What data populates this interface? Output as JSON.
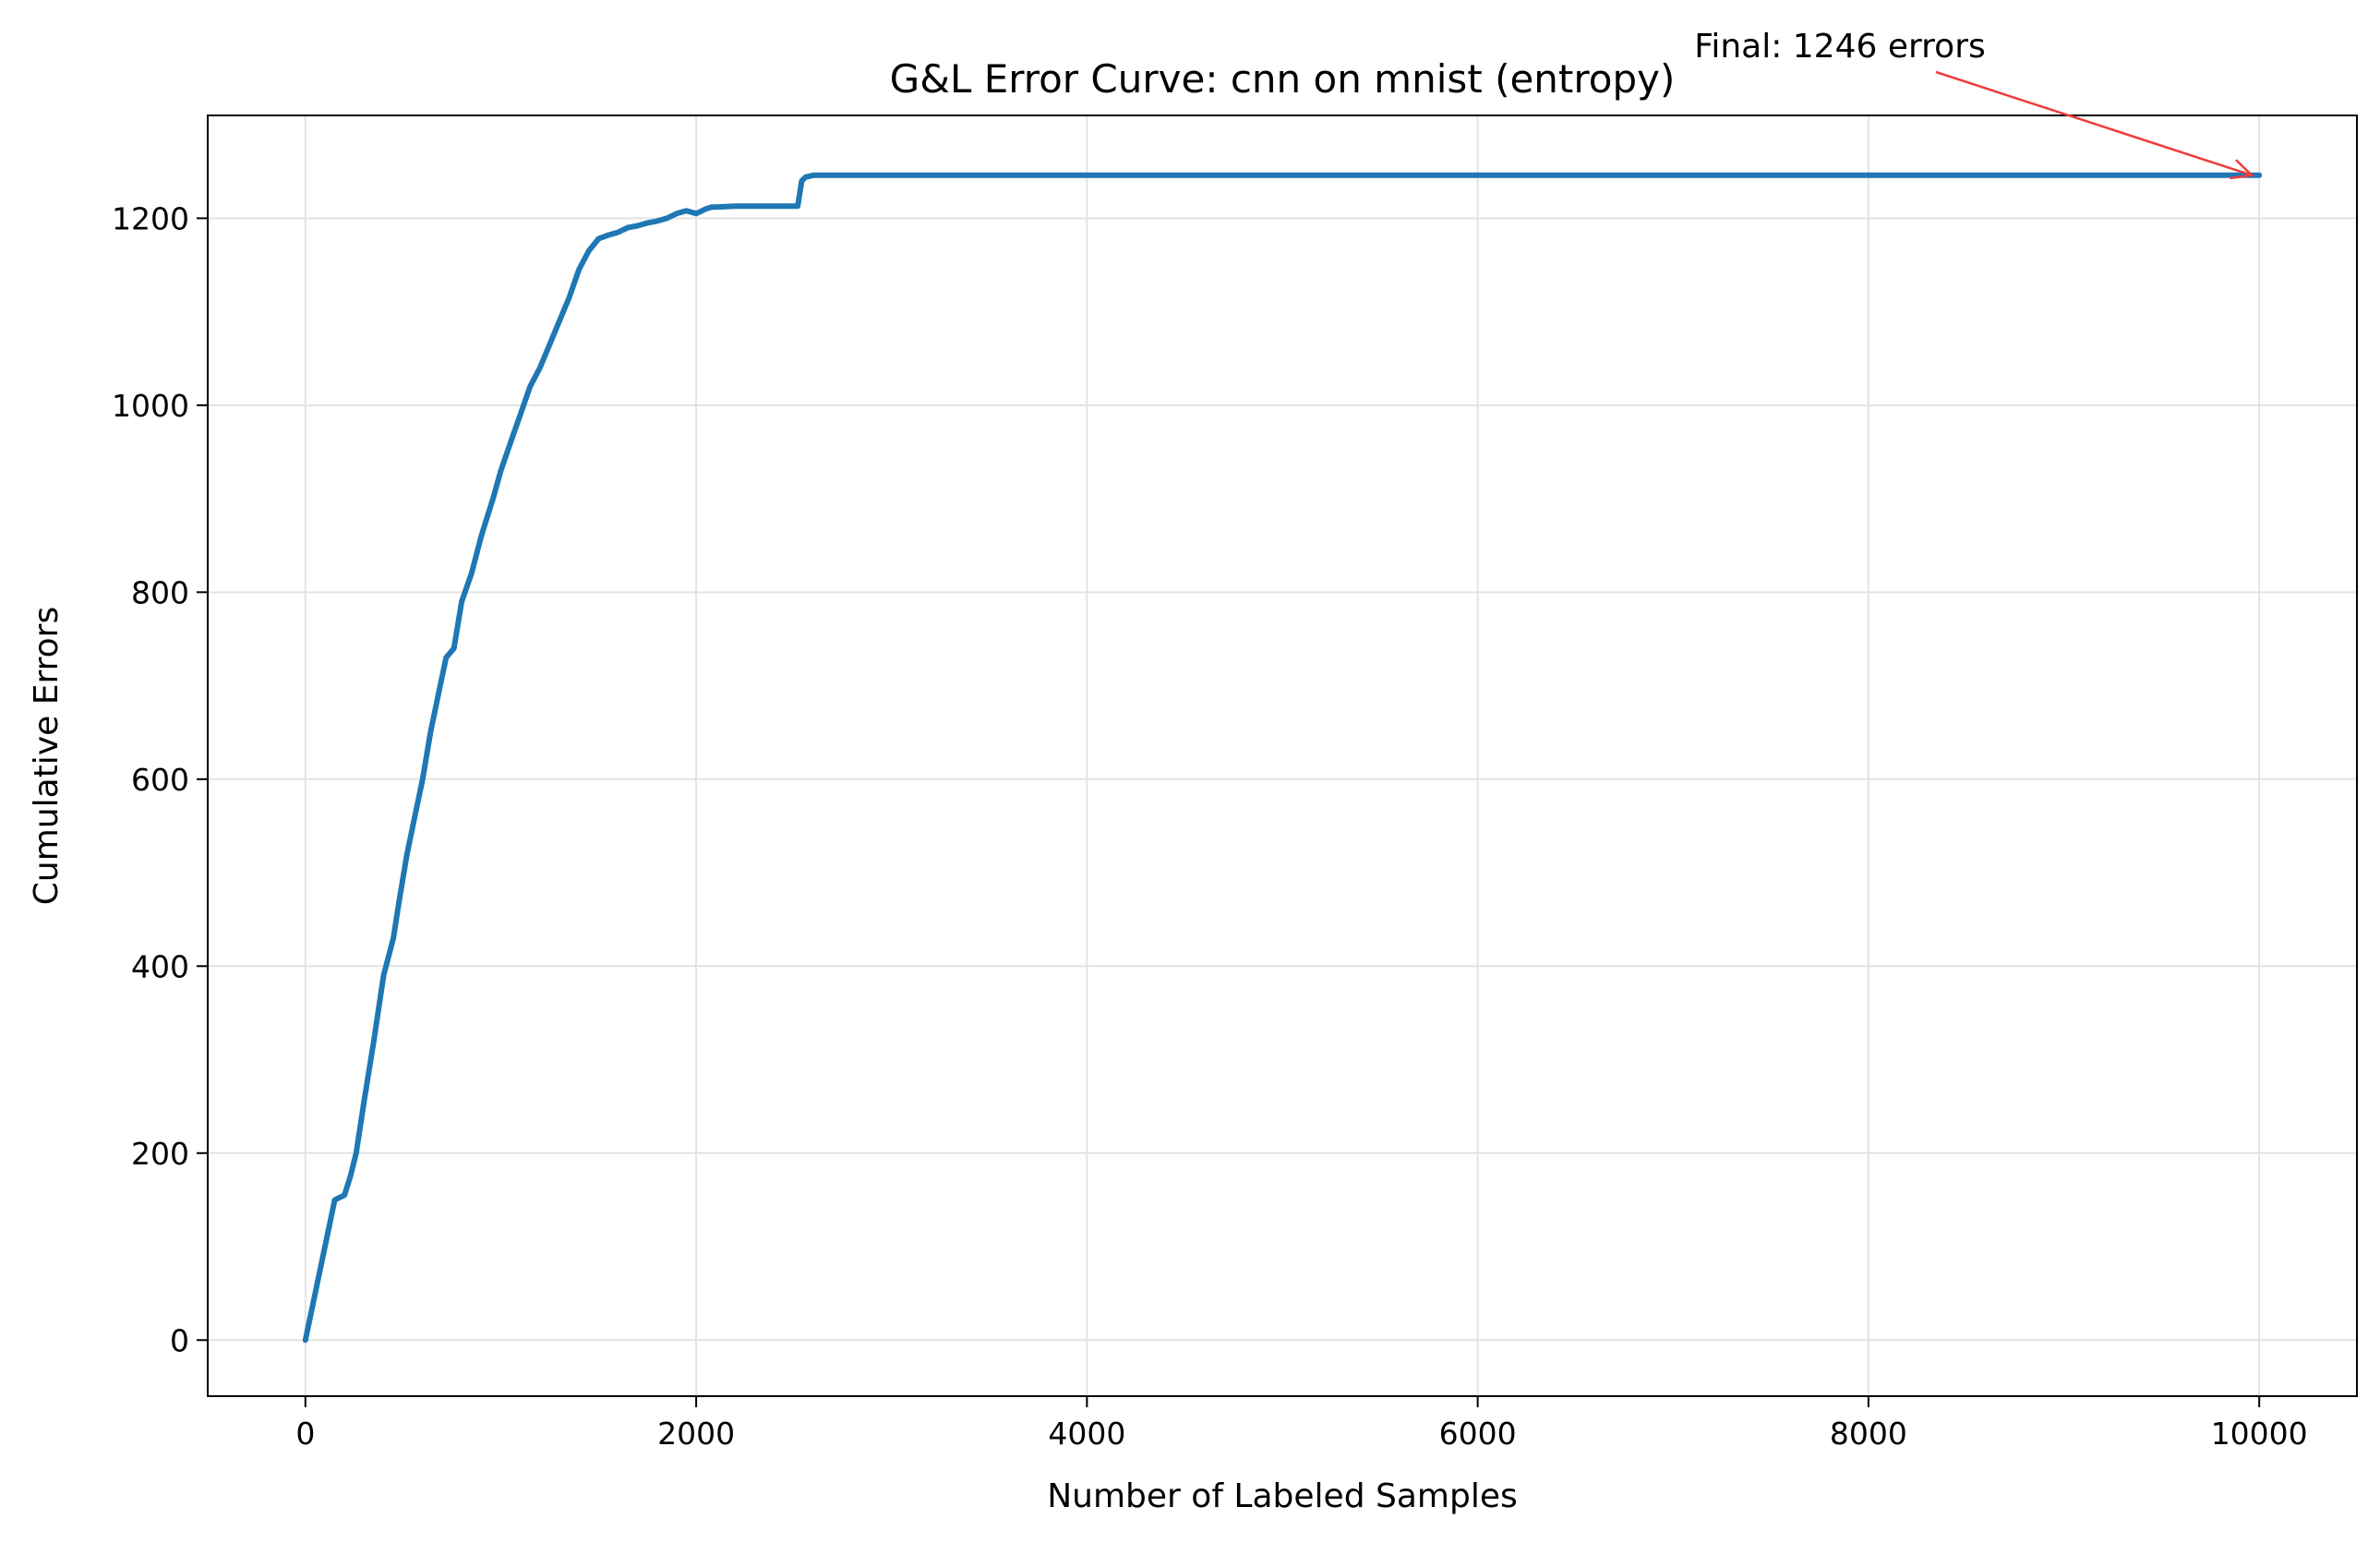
{
  "chart_data": {
    "type": "line",
    "title": "G&L Error Curve: cnn on mnist (entropy)",
    "xlabel": "Number of Labeled Samples",
    "ylabel": "Cumulative Errors",
    "xlim": [
      -500,
      10500
    ],
    "ylim": [
      -60,
      1310
    ],
    "xticks": [
      0,
      2000,
      4000,
      6000,
      8000,
      10000
    ],
    "yticks": [
      0,
      200,
      400,
      600,
      800,
      1000,
      1200
    ],
    "grid": true,
    "series": [
      {
        "color": "#1f77b4",
        "x": [
          0,
          150,
          200,
          230,
          260,
          300,
          350,
          400,
          450,
          480,
          520,
          560,
          600,
          640,
          680,
          720,
          760,
          800,
          850,
          900,
          930,
          960,
          1000,
          1050,
          1100,
          1150,
          1200,
          1250,
          1300,
          1350,
          1400,
          1450,
          1500,
          1550,
          1600,
          1650,
          1700,
          1750,
          1800,
          1850,
          1900,
          1950,
          2000,
          2050,
          2080,
          2100,
          2200,
          2300,
          2400,
          2450,
          2480,
          2500,
          2520,
          2540,
          2560,
          2600,
          2650,
          2700,
          3000,
          4000,
          5000,
          6000,
          7000,
          8000,
          9000,
          10000
        ],
        "y": [
          0,
          150,
          155,
          175,
          200,
          255,
          320,
          390,
          430,
          470,
          520,
          560,
          600,
          650,
          690,
          730,
          740,
          790,
          820,
          860,
          880,
          900,
          930,
          960,
          990,
          1020,
          1040,
          1065,
          1090,
          1115,
          1145,
          1165,
          1178,
          1182,
          1185,
          1190,
          1192,
          1195,
          1197,
          1200,
          1205,
          1208,
          1205,
          1210,
          1212,
          1212,
          1213,
          1213,
          1213,
          1213,
          1213,
          1213,
          1213,
          1240,
          1244,
          1246,
          1246,
          1246,
          1246,
          1246,
          1246,
          1246,
          1246,
          1246,
          1246,
          1246
        ]
      }
    ],
    "annotations": [
      {
        "text": "Final: 1246 errors",
        "point": [
          10000,
          1246
        ],
        "arrow_color": "#f03c3c"
      }
    ]
  }
}
